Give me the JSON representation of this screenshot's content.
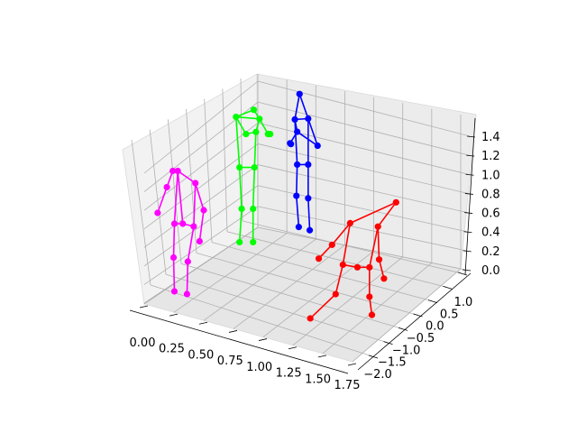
{
  "chart_data": {
    "type": "scatter",
    "projection": "3d",
    "grid": true,
    "axes": {
      "x": {
        "ticks": [
          "0.00",
          "0.25",
          "0.50",
          "0.75",
          "1.00",
          "1.25",
          "1.50",
          "1.75"
        ],
        "range": [
          -0.1,
          1.85
        ]
      },
      "y": {
        "ticks": [
          "−2.0",
          "−1.5",
          "−1.0",
          "−0.5",
          "0.0",
          "0.5",
          "1.0"
        ],
        "range": [
          -2.2,
          1.2
        ]
      },
      "z": {
        "ticks": [
          "0.0",
          "0.2",
          "0.4",
          "0.6",
          "0.8",
          "1.0",
          "1.2",
          "1.4"
        ],
        "range": [
          -0.05,
          1.55
        ]
      }
    },
    "series": [
      {
        "color": "#ff00ff",
        "points": [
          [
            0.2,
            0.42,
            1.09
          ],
          [
            0.26,
            0.42,
            1.09
          ],
          [
            0.47,
            0.42,
            1.0
          ],
          [
            0.13,
            0.28,
            0.97
          ],
          [
            0.57,
            0.36,
            0.8
          ],
          [
            0.02,
            0.24,
            0.78
          ],
          [
            0.52,
            0.36,
            0.57
          ],
          [
            0.22,
            0.24,
            0.7
          ],
          [
            0.32,
            0.34,
            0.7
          ],
          [
            0.45,
            0.36,
            0.68
          ],
          [
            0.21,
            0.16,
            0.45
          ],
          [
            0.38,
            0.26,
            0.42
          ],
          [
            0.22,
            0.1,
            0.2
          ],
          [
            0.37,
            0.17,
            0.18
          ]
        ],
        "edges": [
          [
            0,
            1
          ],
          [
            1,
            2
          ],
          [
            0,
            3
          ],
          [
            3,
            5
          ],
          [
            2,
            4
          ],
          [
            4,
            6
          ],
          [
            1,
            7
          ],
          [
            1,
            8
          ],
          [
            2,
            9
          ],
          [
            7,
            8
          ],
          [
            8,
            9
          ],
          [
            7,
            10
          ],
          [
            10,
            12
          ],
          [
            9,
            11
          ],
          [
            11,
            13
          ]
        ]
      },
      {
        "color": "#00ff00",
        "points": [
          [
            0.25,
            1.0,
            1.37
          ],
          [
            0.5,
            1.0,
            1.44
          ],
          [
            0.58,
            1.0,
            1.35
          ],
          [
            0.39,
            1.0,
            1.2
          ],
          [
            0.53,
            1.0,
            1.22
          ],
          [
            0.7,
            1.0,
            1.2
          ],
          [
            0.73,
            1.0,
            1.2
          ],
          [
            0.3,
            1.0,
            0.87
          ],
          [
            0.51,
            1.0,
            0.87
          ],
          [
            0.33,
            1.0,
            0.46
          ],
          [
            0.49,
            1.0,
            0.46
          ],
          [
            0.3,
            1.0,
            0.13
          ],
          [
            0.49,
            1.0,
            0.13
          ]
        ],
        "edges": [
          [
            0,
            1
          ],
          [
            1,
            2
          ],
          [
            0,
            2
          ],
          [
            0,
            3
          ],
          [
            3,
            4
          ],
          [
            2,
            4
          ],
          [
            2,
            5
          ],
          [
            5,
            6
          ],
          [
            0,
            7
          ],
          [
            4,
            8
          ],
          [
            7,
            8
          ],
          [
            7,
            9
          ],
          [
            9,
            11
          ],
          [
            8,
            10
          ],
          [
            10,
            12
          ]
        ]
      },
      {
        "color": "#0000ff",
        "points": [
          [
            0.75,
            1.0,
            1.8
          ],
          [
            0.69,
            1.0,
            1.49
          ],
          [
            0.86,
            1.0,
            1.5
          ],
          [
            0.72,
            1.0,
            1.34
          ],
          [
            0.63,
            1.0,
            1.2
          ],
          [
            0.64,
            1.0,
            1.19
          ],
          [
            0.98,
            1.0,
            1.17
          ],
          [
            0.72,
            1.0,
            0.94
          ],
          [
            0.86,
            1.0,
            0.94
          ],
          [
            0.71,
            1.0,
            0.56
          ],
          [
            0.86,
            1.0,
            0.53
          ],
          [
            0.74,
            1.0,
            0.18
          ],
          [
            0.88,
            1.0,
            0.14
          ]
        ],
        "edges": [
          [
            0,
            1
          ],
          [
            0,
            2
          ],
          [
            1,
            2
          ],
          [
            1,
            3
          ],
          [
            3,
            4
          ],
          [
            4,
            5
          ],
          [
            3,
            6
          ],
          [
            2,
            6
          ],
          [
            1,
            7
          ],
          [
            2,
            8
          ],
          [
            7,
            8
          ],
          [
            7,
            9
          ],
          [
            9,
            11
          ],
          [
            8,
            10
          ],
          [
            10,
            12
          ]
        ]
      },
      {
        "color": "#ff0000",
        "points": [
          [
            1.45,
            -1.0,
            1.33
          ],
          [
            1.07,
            -1.0,
            1.09
          ],
          [
            1.3,
            -1.0,
            1.05
          ],
          [
            0.92,
            -1.0,
            0.84
          ],
          [
            1.31,
            -1.0,
            0.67
          ],
          [
            0.81,
            -1.0,
            0.68
          ],
          [
            1.35,
            -1.0,
            0.45
          ],
          [
            1.01,
            -1.0,
            0.61
          ],
          [
            1.13,
            -1.0,
            0.58
          ],
          [
            1.23,
            -1.0,
            0.58
          ],
          [
            0.95,
            -1.0,
            0.27
          ],
          [
            1.23,
            -1.0,
            0.24
          ],
          [
            0.74,
            -1.0,
            -0.01
          ],
          [
            1.25,
            -1.0,
            0.03
          ]
        ],
        "edges": [
          [
            0,
            1
          ],
          [
            0,
            2
          ],
          [
            1,
            3
          ],
          [
            3,
            5
          ],
          [
            2,
            4
          ],
          [
            4,
            6
          ],
          [
            1,
            7
          ],
          [
            2,
            9
          ],
          [
            7,
            8
          ],
          [
            8,
            9
          ],
          [
            7,
            10
          ],
          [
            10,
            12
          ],
          [
            9,
            11
          ],
          [
            11,
            13
          ]
        ]
      }
    ]
  }
}
